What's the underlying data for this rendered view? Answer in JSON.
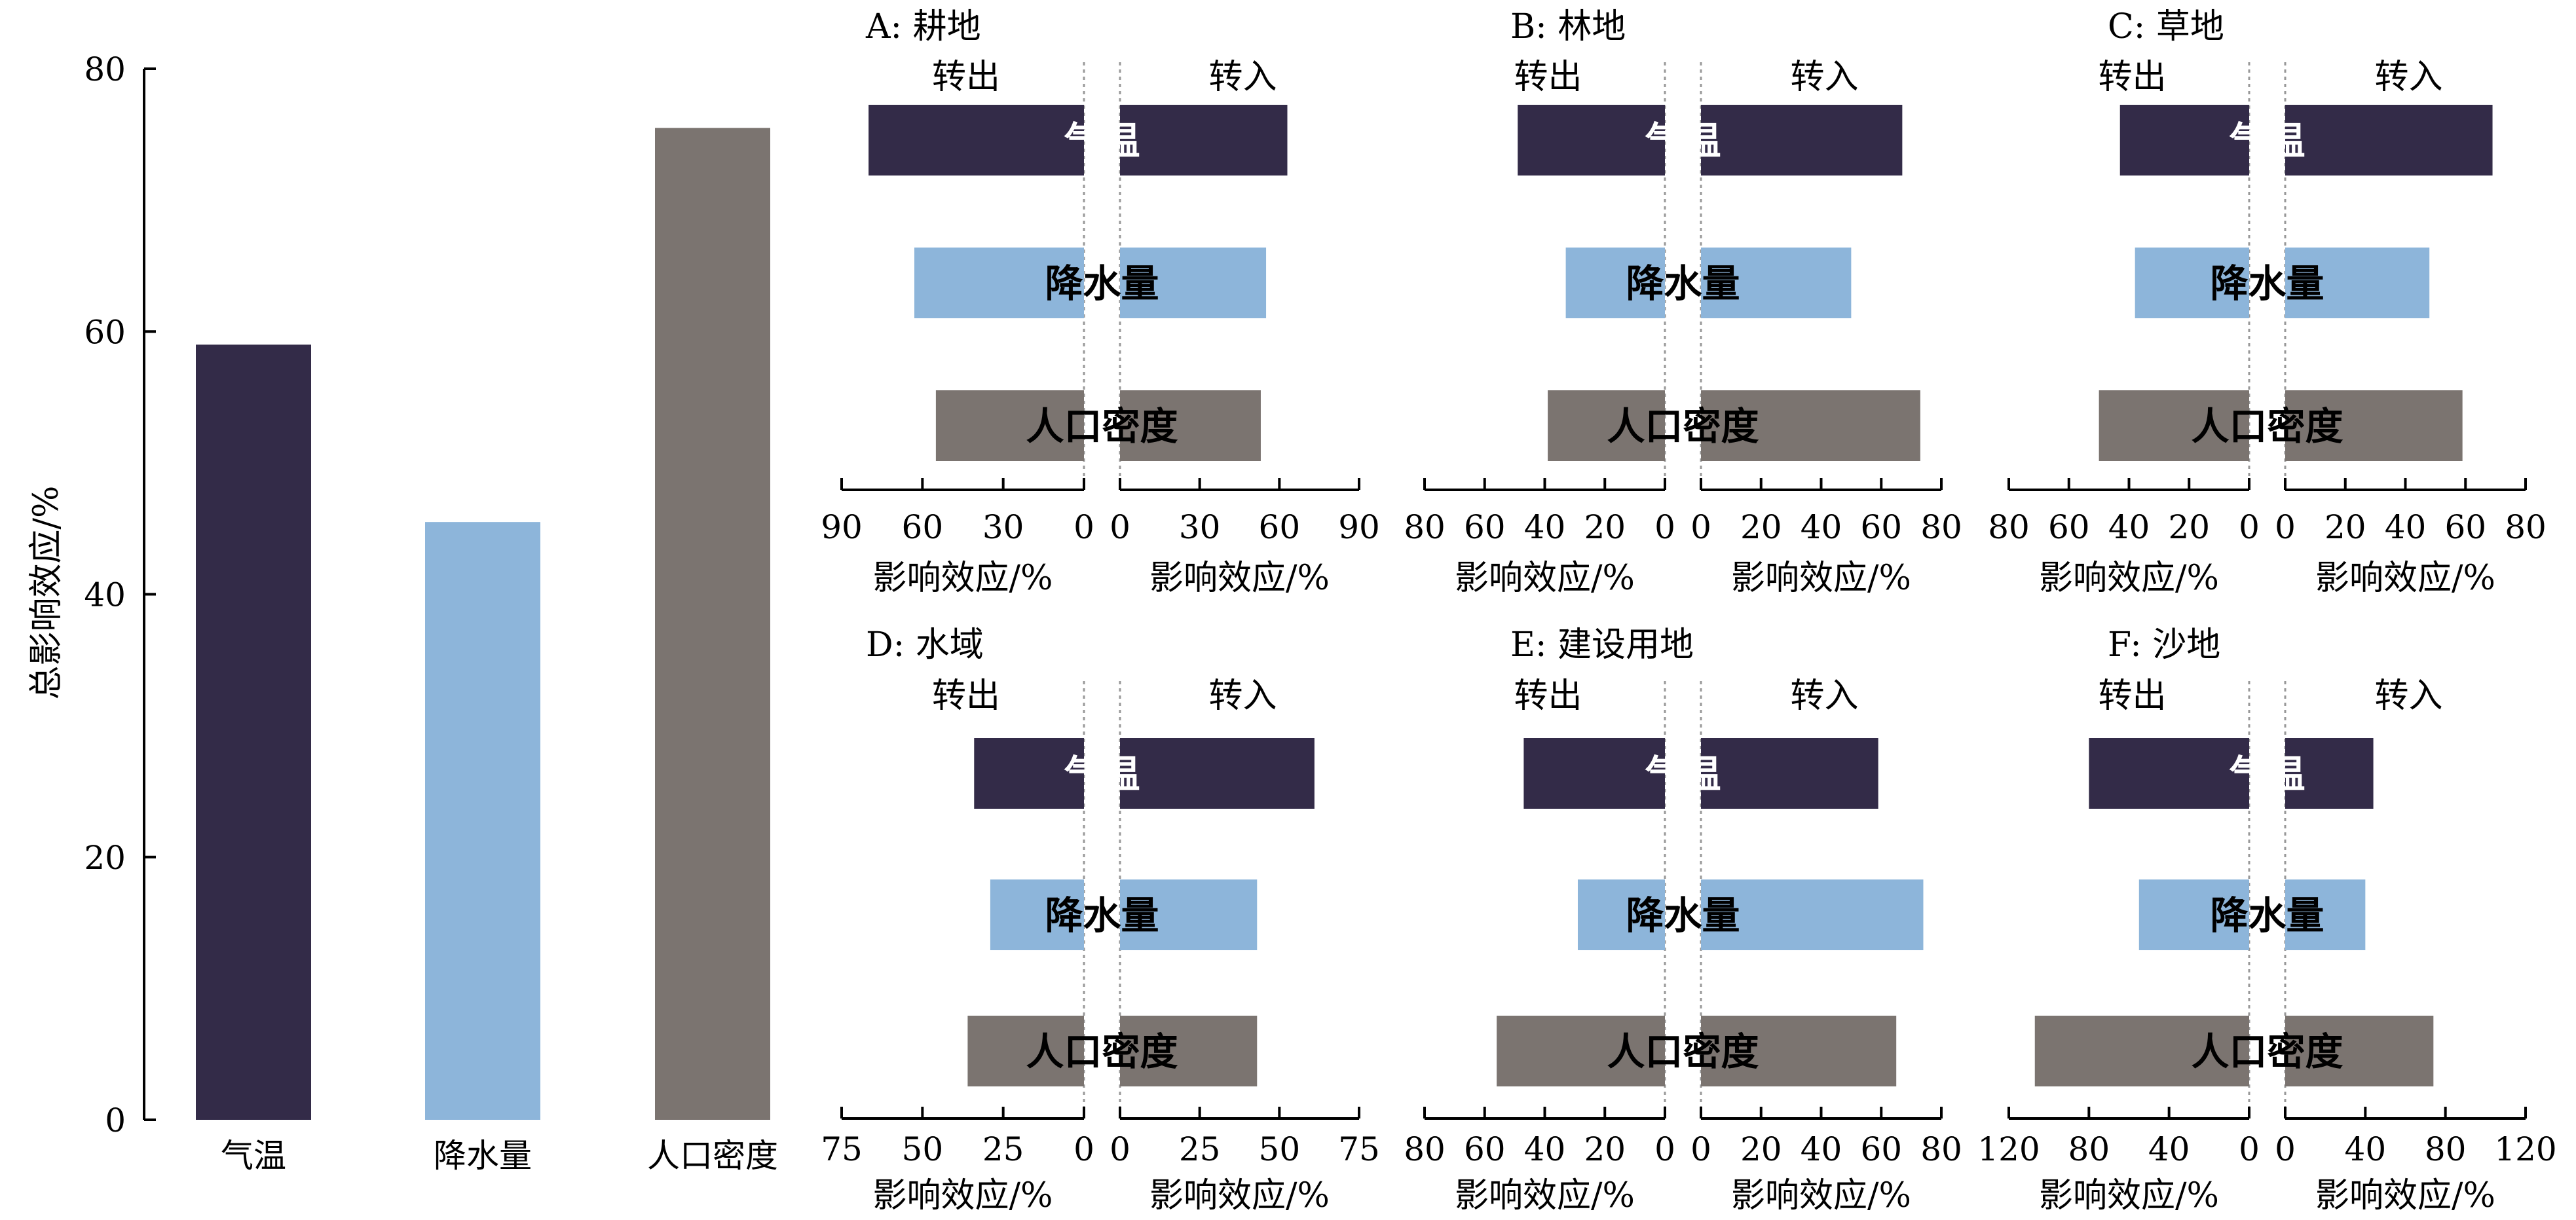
{
  "colors": {
    "temperature": "#332B48",
    "precipitation": "#8DB5DA",
    "population": "#7B7470"
  },
  "chart_data": [
    {
      "type": "bar",
      "categories": [
        "气温",
        "降水量",
        "人口密度"
      ],
      "values": [
        59,
        45.5,
        75.5
      ],
      "ylabel": "总影响效应/%",
      "ylim": [
        0,
        80
      ],
      "yticks": [
        "0",
        "20",
        "40",
        "60",
        "80"
      ],
      "grid": false
    },
    {
      "type": "bar",
      "orientation": "horizontal-diverging",
      "title": "A: 耕地",
      "left_label": "转出",
      "right_label": "转入",
      "categories": [
        "气温",
        "降水量",
        "人口密度"
      ],
      "series": [
        {
          "name": "转出",
          "values": [
            80,
            63,
            55
          ]
        },
        {
          "name": "转入",
          "values": [
            63,
            55,
            53
          ]
        }
      ],
      "max": 90,
      "left_ticks": [
        "90",
        "60",
        "30",
        "0"
      ],
      "right_ticks": [
        "0",
        "30",
        "60",
        "90"
      ],
      "xlabel_left": "影响效应/%",
      "xlabel_right": "影响效应/%"
    },
    {
      "type": "bar",
      "orientation": "horizontal-diverging",
      "title": "B: 林地",
      "left_label": "转出",
      "right_label": "转入",
      "categories": [
        "气温",
        "降水量",
        "人口密度"
      ],
      "series": [
        {
          "name": "转出",
          "values": [
            49,
            33,
            39
          ]
        },
        {
          "name": "转入",
          "values": [
            67,
            50,
            73
          ]
        }
      ],
      "max": 80,
      "left_ticks": [
        "80",
        "60",
        "40",
        "20",
        "0"
      ],
      "right_ticks": [
        "0",
        "20",
        "40",
        "60",
        "80"
      ],
      "xlabel_left": "影响效应/%",
      "xlabel_right": "影响效应/%"
    },
    {
      "type": "bar",
      "orientation": "horizontal-diverging",
      "title": "C: 草地",
      "left_label": "转出",
      "right_label": "转入",
      "categories": [
        "气温",
        "降水量",
        "人口密度"
      ],
      "series": [
        {
          "name": "转出",
          "values": [
            43,
            38,
            50
          ]
        },
        {
          "name": "转入",
          "values": [
            69,
            48,
            59
          ]
        }
      ],
      "max": 80,
      "left_ticks": [
        "80",
        "60",
        "40",
        "20",
        "0"
      ],
      "right_ticks": [
        "0",
        "20",
        "40",
        "60",
        "80"
      ],
      "xlabel_left": "影响效应/%",
      "xlabel_right": "影响效应/%"
    },
    {
      "type": "bar",
      "orientation": "horizontal-diverging",
      "title": "D: 水域",
      "left_label": "转出",
      "right_label": "转入",
      "categories": [
        "气温",
        "降水量",
        "人口密度"
      ],
      "series": [
        {
          "name": "转出",
          "values": [
            34,
            29,
            36
          ]
        },
        {
          "name": "转入",
          "values": [
            61,
            43,
            43
          ]
        }
      ],
      "max": 75,
      "left_ticks": [
        "75",
        "50",
        "25",
        "0"
      ],
      "right_ticks": [
        "0",
        "25",
        "50",
        "75"
      ],
      "xlabel_left": "影响效应/%",
      "xlabel_right": "影响效应/%"
    },
    {
      "type": "bar",
      "orientation": "horizontal-diverging",
      "title": "E: 建设用地",
      "left_label": "转出",
      "right_label": "转入",
      "categories": [
        "气温",
        "降水量",
        "人口密度"
      ],
      "series": [
        {
          "name": "转出",
          "values": [
            47,
            29,
            56
          ]
        },
        {
          "name": "转入",
          "values": [
            59,
            74,
            65
          ]
        }
      ],
      "max": 80,
      "left_ticks": [
        "80",
        "60",
        "40",
        "20",
        "0"
      ],
      "right_ticks": [
        "0",
        "20",
        "40",
        "60",
        "80"
      ],
      "xlabel_left": "影响效应/%",
      "xlabel_right": "影响效应/%"
    },
    {
      "type": "bar",
      "orientation": "horizontal-diverging",
      "title": "F: 沙地",
      "left_label": "转出",
      "right_label": "转入",
      "categories": [
        "气温",
        "降水量",
        "人口密度"
      ],
      "series": [
        {
          "name": "转出",
          "values": [
            80,
            55,
            107
          ]
        },
        {
          "name": "转入",
          "values": [
            44,
            40,
            74
          ]
        }
      ],
      "max": 120,
      "left_ticks": [
        "120",
        "80",
        "40",
        "0"
      ],
      "right_ticks": [
        "0",
        "40",
        "80",
        "120"
      ],
      "xlabel_left": "影响效应/%",
      "xlabel_right": "影响效应/%"
    }
  ]
}
